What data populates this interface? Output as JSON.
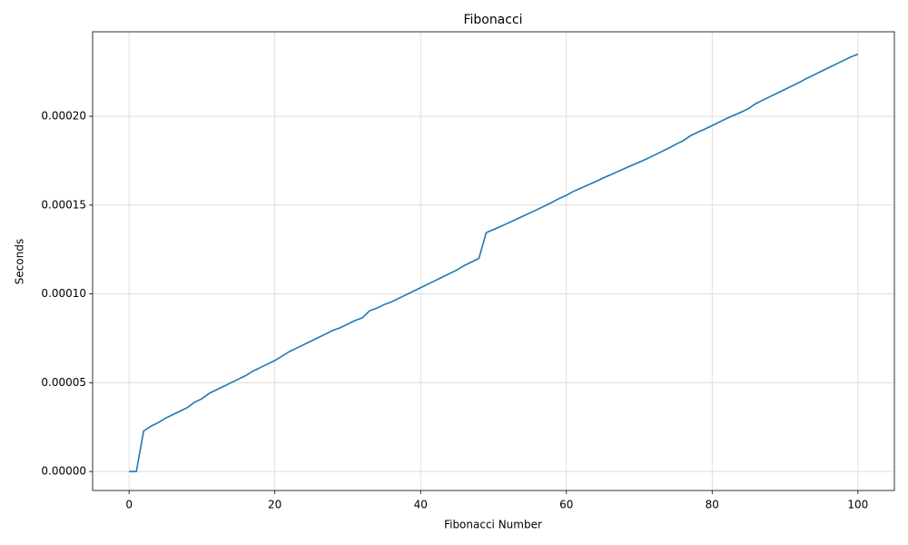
{
  "chart_data": {
    "type": "line",
    "title": "Fibonacci",
    "xlabel": "Fibonacci Number",
    "ylabel": "Seconds",
    "x": [
      0,
      1,
      2,
      3,
      4,
      5,
      6,
      7,
      8,
      9,
      10,
      11,
      12,
      13,
      14,
      15,
      16,
      17,
      18,
      19,
      20,
      21,
      22,
      23,
      24,
      25,
      26,
      27,
      28,
      29,
      30,
      31,
      32,
      33,
      34,
      35,
      36,
      37,
      38,
      39,
      40,
      41,
      42,
      43,
      44,
      45,
      46,
      47,
      48,
      49,
      50,
      51,
      52,
      53,
      54,
      55,
      56,
      57,
      58,
      59,
      60,
      61,
      62,
      63,
      64,
      65,
      66,
      67,
      68,
      69,
      70,
      71,
      72,
      73,
      74,
      75,
      76,
      77,
      78,
      79,
      80,
      81,
      82,
      83,
      84,
      85,
      86,
      87,
      88,
      89,
      90,
      91,
      92,
      93,
      94,
      95,
      96,
      97,
      98,
      99,
      100
    ],
    "values": [
      0,
      0,
      2.28e-05,
      2.55e-05,
      2.75e-05,
      3e-05,
      3.2e-05,
      3.4e-05,
      3.6e-05,
      3.9e-05,
      4.1e-05,
      4.4e-05,
      4.6e-05,
      4.8e-05,
      5e-05,
      5.2e-05,
      5.4e-05,
      5.65e-05,
      5.85e-05,
      6.05e-05,
      6.25e-05,
      6.5e-05,
      6.75e-05,
      6.95e-05,
      7.15e-05,
      7.35e-05,
      7.55e-05,
      7.75e-05,
      7.95e-05,
      8.1e-05,
      8.3e-05,
      8.5e-05,
      8.65e-05,
      9.05e-05,
      9.2e-05,
      9.4e-05,
      9.55e-05,
      9.75e-05,
      9.95e-05,
      0.0001015,
      0.0001035,
      0.0001055,
      0.0001075,
      0.0001095,
      0.0001115,
      0.0001135,
      0.000116,
      0.000118,
      0.00012,
      0.0001345,
      0.0001362,
      0.000138,
      0.0001399,
      0.0001418,
      0.0001437,
      0.0001456,
      0.0001475,
      0.0001495,
      0.0001515,
      0.0001537,
      0.0001555,
      0.0001578,
      0.0001596,
      0.0001614,
      0.0001632,
      0.0001652,
      0.000167,
      0.0001688,
      0.0001706,
      0.0001724,
      0.0001742,
      0.000176,
      0.000178,
      0.00018,
      0.000182,
      0.0001842,
      0.0001862,
      0.000189,
      0.000191,
      0.0001928,
      0.0001948,
      0.0001968,
      0.0001988,
      0.0002006,
      0.0002024,
      0.0002044,
      0.0002072,
      0.0002092,
      0.0002112,
      0.0002132,
      0.0002152,
      0.0002172,
      0.0002192,
      0.0002214,
      0.0002234,
      0.0002254,
      0.0002274,
      0.0002294,
      0.0002314,
      0.0002334,
      0.000235
    ],
    "color": "#1f77b4",
    "xlim": [
      -5,
      105
    ],
    "ylim": [
      -1.07e-05,
      0.0002476
    ],
    "xticks": [
      0,
      20,
      40,
      60,
      80,
      100
    ],
    "yticks": [
      {
        "value": 0,
        "label": "0.00000"
      },
      {
        "value": 5e-05,
        "label": "0.00005"
      },
      {
        "value": 0.0001,
        "label": "0.00010"
      },
      {
        "value": 0.00015,
        "label": "0.00015"
      },
      {
        "value": 0.0002,
        "label": "0.00020"
      }
    ],
    "grid": true
  }
}
